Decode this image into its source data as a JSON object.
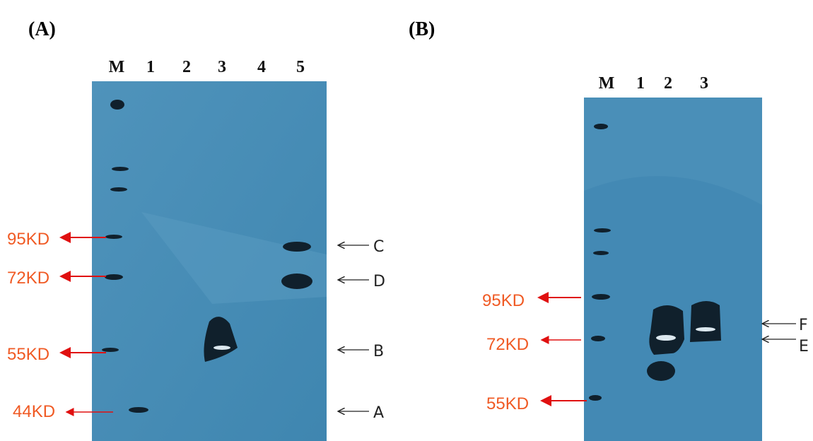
{
  "panels": [
    {
      "label": "(A)",
      "lanes": [
        "M",
        "1",
        "2",
        "3",
        "4",
        "5"
      ],
      "markers": [
        "95KD",
        "72KD",
        "55KD",
        "44KD"
      ],
      "bands": [
        "C",
        "D",
        "B",
        "A"
      ]
    },
    {
      "label": "(B)",
      "lanes": [
        "M",
        "1",
        "2",
        "3"
      ],
      "markers": [
        "95KD",
        "72KD",
        "55KD"
      ],
      "bands": [
        "F",
        "E"
      ]
    }
  ]
}
